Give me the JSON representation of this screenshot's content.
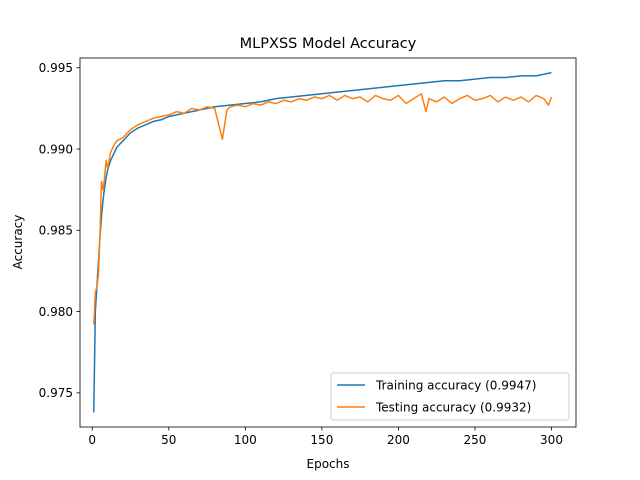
{
  "chart_data": {
    "type": "line",
    "title": "MLPXSS Model Accuracy",
    "xlabel": "Epochs",
    "ylabel": "Accuracy",
    "xlim": [
      -8,
      316
    ],
    "ylim": [
      0.9729,
      0.9956
    ],
    "xticks": [
      0,
      50,
      100,
      150,
      200,
      250,
      300
    ],
    "yticks": [
      0.975,
      0.98,
      0.985,
      0.99,
      0.995
    ],
    "ytick_labels": [
      "0.975",
      "0.980",
      "0.985",
      "0.990",
      "0.995"
    ],
    "grid": false,
    "legend_position": "lower-right",
    "series": [
      {
        "name": "Training accuracy (0.9947)",
        "color": "#1f77b4",
        "points": [
          [
            1,
            0.9738
          ],
          [
            2,
            0.98
          ],
          [
            3,
            0.9815
          ],
          [
            4,
            0.983
          ],
          [
            5,
            0.9845
          ],
          [
            6,
            0.9858
          ],
          [
            7,
            0.9868
          ],
          [
            8,
            0.9876
          ],
          [
            9,
            0.9882
          ],
          [
            10,
            0.9887
          ],
          [
            12,
            0.9893
          ],
          [
            14,
            0.9897
          ],
          [
            16,
            0.9901
          ],
          [
            18,
            0.9903
          ],
          [
            20,
            0.9905
          ],
          [
            25,
            0.991
          ],
          [
            30,
            0.9913
          ],
          [
            35,
            0.9915
          ],
          [
            40,
            0.9917
          ],
          [
            45,
            0.9918
          ],
          [
            50,
            0.992
          ],
          [
            60,
            0.9922
          ],
          [
            70,
            0.9924
          ],
          [
            80,
            0.9926
          ],
          [
            90,
            0.9927
          ],
          [
            100,
            0.9928
          ],
          [
            110,
            0.9929
          ],
          [
            120,
            0.9931
          ],
          [
            130,
            0.9932
          ],
          [
            140,
            0.9933
          ],
          [
            150,
            0.9934
          ],
          [
            160,
            0.9935
          ],
          [
            170,
            0.9936
          ],
          [
            180,
            0.9937
          ],
          [
            190,
            0.9938
          ],
          [
            200,
            0.9939
          ],
          [
            210,
            0.994
          ],
          [
            220,
            0.9941
          ],
          [
            230,
            0.9942
          ],
          [
            240,
            0.9942
          ],
          [
            250,
            0.9943
          ],
          [
            260,
            0.9944
          ],
          [
            270,
            0.9944
          ],
          [
            280,
            0.9945
          ],
          [
            290,
            0.9945
          ],
          [
            295,
            0.9946
          ],
          [
            300,
            0.9947
          ]
        ]
      },
      {
        "name": "Testing accuracy (0.9932)",
        "color": "#ff7f0e",
        "points": [
          [
            1,
            0.9792
          ],
          [
            2,
            0.9812
          ],
          [
            3,
            0.9815
          ],
          [
            4,
            0.9822
          ],
          [
            5,
            0.9845
          ],
          [
            6,
            0.988
          ],
          [
            7,
            0.9875
          ],
          [
            8,
            0.9882
          ],
          [
            9,
            0.9893
          ],
          [
            10,
            0.9888
          ],
          [
            12,
            0.9898
          ],
          [
            14,
            0.9902
          ],
          [
            16,
            0.9905
          ],
          [
            18,
            0.9906
          ],
          [
            20,
            0.9907
          ],
          [
            25,
            0.9912
          ],
          [
            30,
            0.9915
          ],
          [
            35,
            0.9917
          ],
          [
            40,
            0.9919
          ],
          [
            45,
            0.992
          ],
          [
            50,
            0.9921
          ],
          [
            55,
            0.9923
          ],
          [
            60,
            0.9922
          ],
          [
            65,
            0.9925
          ],
          [
            70,
            0.9924
          ],
          [
            75,
            0.9926
          ],
          [
            80,
            0.9925
          ],
          [
            85,
            0.9906
          ],
          [
            88,
            0.9924
          ],
          [
            90,
            0.9926
          ],
          [
            95,
            0.9927
          ],
          [
            100,
            0.9926
          ],
          [
            105,
            0.9928
          ],
          [
            110,
            0.9927
          ],
          [
            115,
            0.9929
          ],
          [
            120,
            0.9928
          ],
          [
            125,
            0.993
          ],
          [
            130,
            0.9929
          ],
          [
            135,
            0.9931
          ],
          [
            140,
            0.993
          ],
          [
            145,
            0.9932
          ],
          [
            150,
            0.9931
          ],
          [
            155,
            0.9933
          ],
          [
            160,
            0.993
          ],
          [
            165,
            0.9933
          ],
          [
            170,
            0.9931
          ],
          [
            175,
            0.9932
          ],
          [
            180,
            0.9929
          ],
          [
            185,
            0.9933
          ],
          [
            190,
            0.9931
          ],
          [
            195,
            0.993
          ],
          [
            200,
            0.9933
          ],
          [
            205,
            0.9928
          ],
          [
            210,
            0.9931
          ],
          [
            215,
            0.9934
          ],
          [
            218,
            0.9923
          ],
          [
            220,
            0.9931
          ],
          [
            225,
            0.9929
          ],
          [
            230,
            0.9932
          ],
          [
            235,
            0.9928
          ],
          [
            240,
            0.9931
          ],
          [
            245,
            0.9933
          ],
          [
            250,
            0.993
          ],
          [
            255,
            0.9931
          ],
          [
            260,
            0.9933
          ],
          [
            265,
            0.9929
          ],
          [
            270,
            0.9932
          ],
          [
            275,
            0.993
          ],
          [
            280,
            0.9932
          ],
          [
            285,
            0.9929
          ],
          [
            290,
            0.9933
          ],
          [
            295,
            0.9931
          ],
          [
            298,
            0.9927
          ],
          [
            300,
            0.9932
          ]
        ]
      }
    ]
  }
}
